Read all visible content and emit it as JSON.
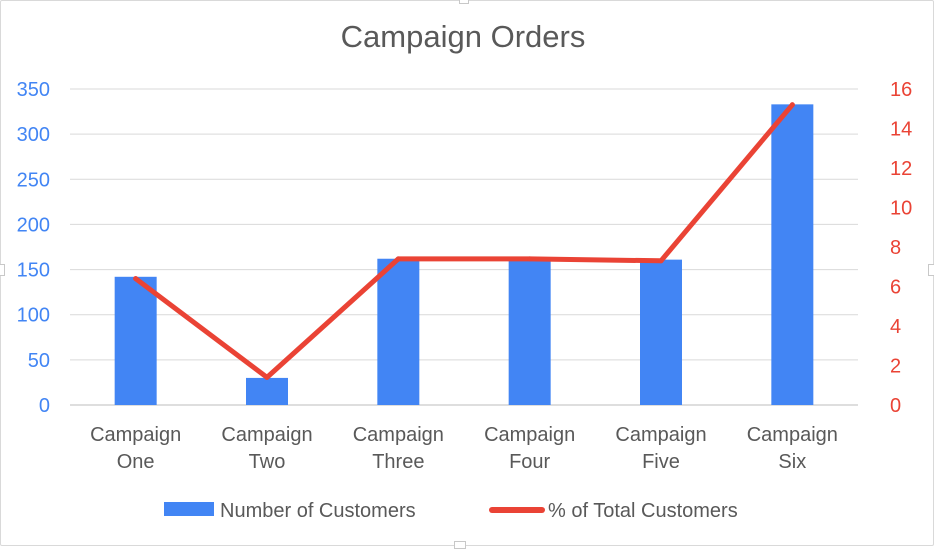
{
  "chart_data": {
    "type": "bar",
    "title": "Campaign Orders",
    "categories": [
      [
        "Campaign",
        "One"
      ],
      [
        "Campaign",
        "Two"
      ],
      [
        "Campaign",
        "Three"
      ],
      [
        "Campaign",
        "Four"
      ],
      [
        "Campaign",
        "Five"
      ],
      [
        "Campaign",
        "Six"
      ]
    ],
    "series": [
      {
        "name": "Number of Customers",
        "type": "bar",
        "axis": "left",
        "color": "#4285f4",
        "values": [
          142,
          30,
          162,
          162,
          161,
          333
        ]
      },
      {
        "name": "% of Total Customers",
        "type": "line",
        "axis": "right",
        "color": "#ea4335",
        "values": [
          6.4,
          1.4,
          7.4,
          7.4,
          7.3,
          15.2
        ]
      }
    ],
    "y_left": {
      "min": 0,
      "max": 350,
      "ticks": [
        0,
        50,
        100,
        150,
        200,
        250,
        300,
        350
      ],
      "color": "#4285f4"
    },
    "y_right": {
      "min": 0,
      "max": 16,
      "ticks": [
        0,
        2,
        4,
        6,
        8,
        10,
        12,
        14,
        16
      ],
      "color": "#ea4335"
    },
    "grid": true,
    "legend_position": "bottom"
  }
}
